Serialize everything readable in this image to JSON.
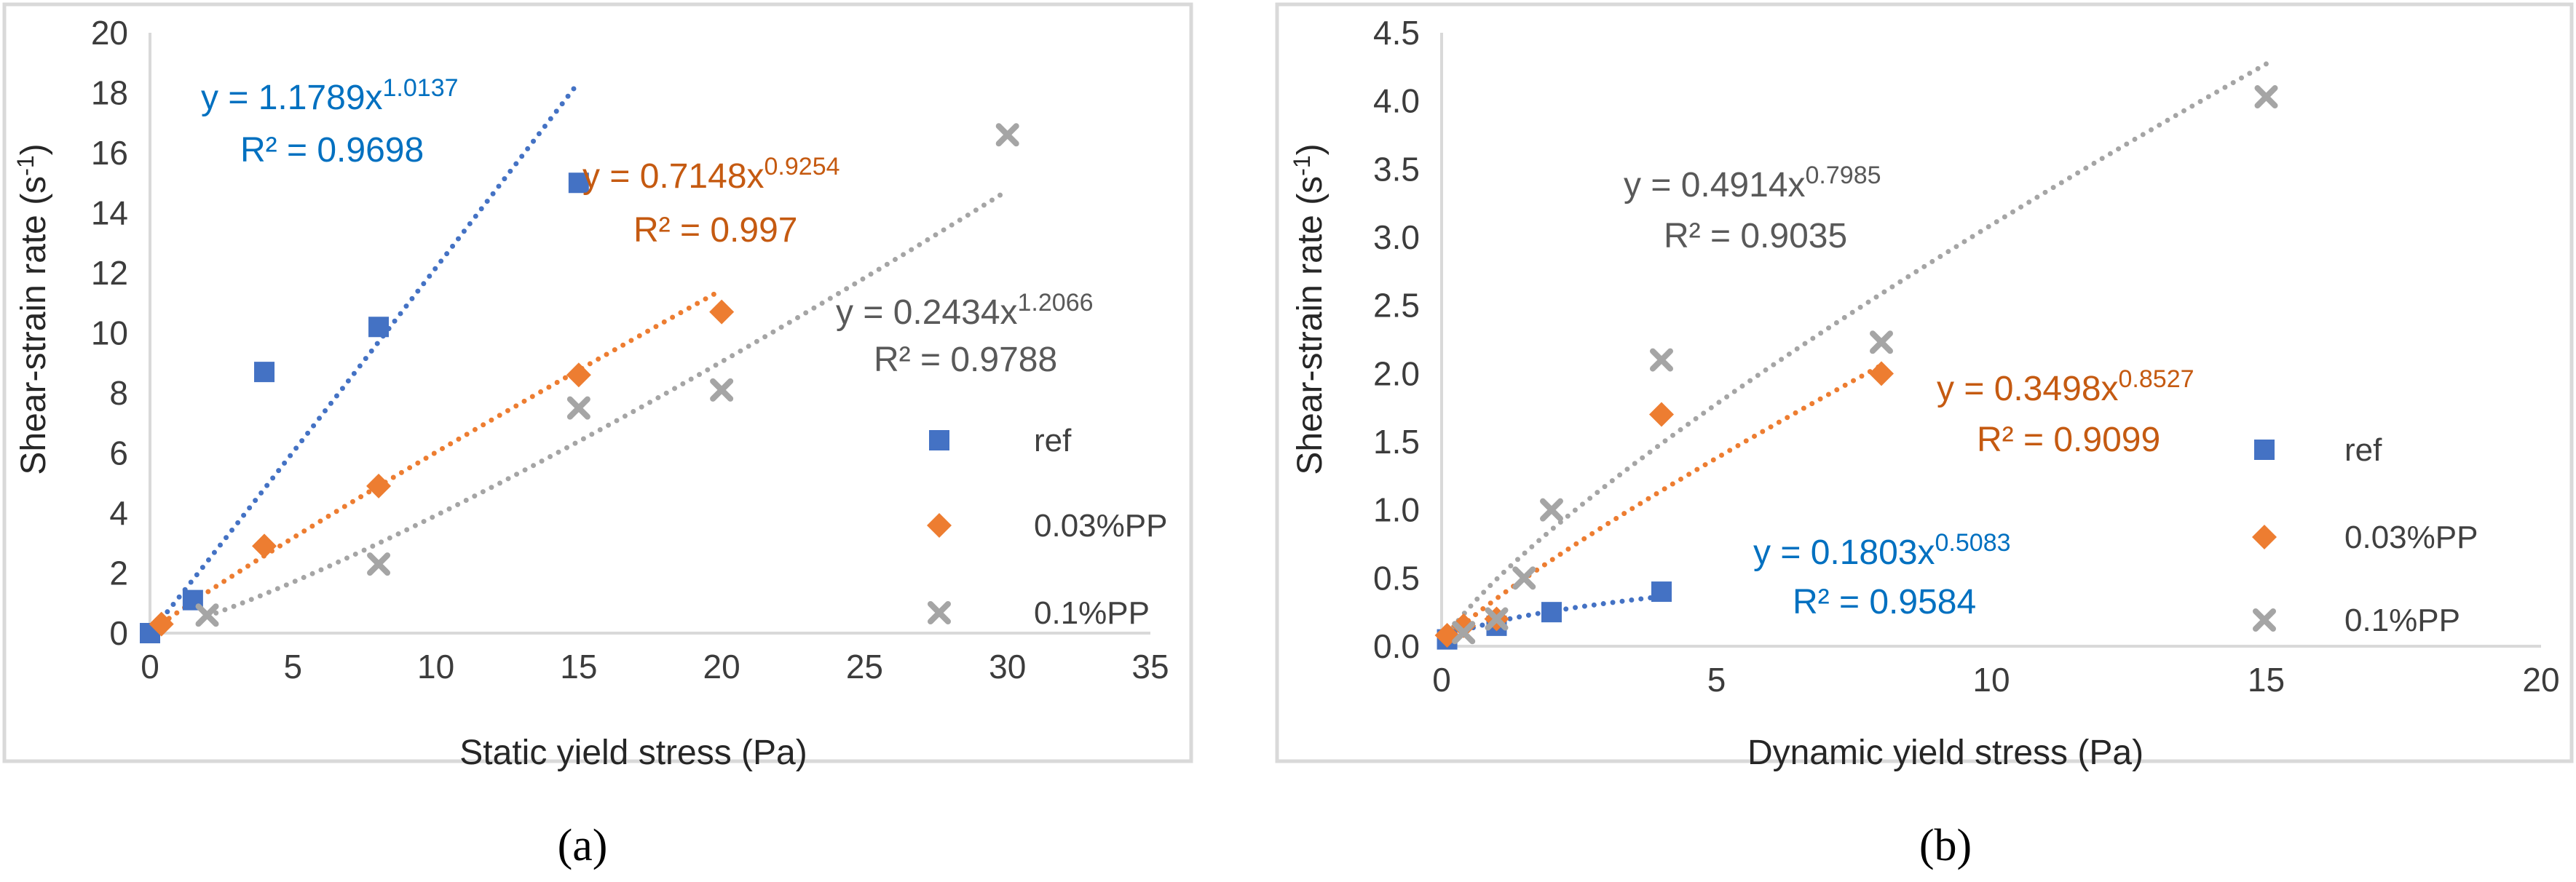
{
  "chart_data": [
    {
      "id": "a",
      "type": "scatter",
      "panel_label": "(a)",
      "xlabel": "Static yield stress (Pa)",
      "ylabel": "Shear-strain rate (s",
      "ylabel_sup": "-1",
      "ylabel_end": ")",
      "xlim": [
        0,
        35
      ],
      "ylim": [
        0,
        20
      ],
      "xticks": [
        0,
        5,
        10,
        15,
        20,
        25,
        30,
        35
      ],
      "yticks": [
        0,
        2,
        4,
        6,
        8,
        10,
        12,
        14,
        16,
        18,
        20
      ],
      "legend_position": "right",
      "series": [
        {
          "name": "ref",
          "marker": "square",
          "color": "#4472C4",
          "points": [
            [
              0,
              0
            ],
            [
              1.5,
              1.1
            ],
            [
              4,
              8.7
            ],
            [
              8,
              10.2
            ],
            [
              15,
              15.0
            ]
          ],
          "trendline": {
            "a": 1.1789,
            "b": 1.0137,
            "x_range": [
              0.4,
              15.0
            ],
            "color": "#4472C4"
          },
          "equation": {
            "lead": "y = 1.1789x",
            "exponent": "1.0137",
            "r2": "R² = 0.9698",
            "color": "#0070C0",
            "position": "upper-left"
          }
        },
        {
          "name": "0.03%PP",
          "marker": "diamond",
          "color": "#ED7D31",
          "points": [
            [
              0.4,
              0.3
            ],
            [
              4,
              2.9
            ],
            [
              8,
              4.9
            ],
            [
              15,
              8.6
            ],
            [
              20,
              10.7
            ]
          ],
          "trendline": {
            "a": 0.7148,
            "b": 0.9254,
            "x_range": [
              0.4,
              20
            ],
            "color": "#ED7D31"
          },
          "equation": {
            "lead": "y = 0.7148x",
            "exponent": "0.9254",
            "r2": "R² = 0.997",
            "color": "#C55A11",
            "position": "upper-middle"
          }
        },
        {
          "name": "0.1%PP",
          "marker": "x",
          "color": "#A5A5A5",
          "points": [
            [
              2,
              0.6
            ],
            [
              8,
              2.3
            ],
            [
              15,
              7.5
            ],
            [
              20,
              8.1
            ],
            [
              30,
              16.6
            ]
          ],
          "trendline": {
            "a": 0.2434,
            "b": 1.2066,
            "x_range": [
              2,
              30
            ],
            "color": "#A5A5A5"
          },
          "equation": {
            "lead": "y = 0.2434x",
            "exponent": "1.2066",
            "r2": "R² = 0.9788",
            "color": "#595959",
            "position": "middle-right"
          }
        }
      ]
    },
    {
      "id": "b",
      "type": "scatter",
      "panel_label": "(b)",
      "xlabel": "Dynamic yield stress (Pa)",
      "ylabel": "Shear-strain rate (s",
      "ylabel_sup": "-1",
      "ylabel_end": ")",
      "xlim": [
        0,
        20
      ],
      "ylim": [
        0,
        4.5
      ],
      "xticks": [
        0,
        5,
        10,
        15,
        20
      ],
      "yticks": [
        "0.0",
        "0.5",
        "1.0",
        "1.5",
        "2.0",
        "2.5",
        "3.0",
        "3.5",
        "4.0",
        "4.5"
      ],
      "legend_position": "right",
      "series": [
        {
          "name": "ref",
          "marker": "square",
          "color": "#4472C4",
          "points": [
            [
              0.1,
              0.05
            ],
            [
              1,
              0.15
            ],
            [
              2,
              0.25
            ],
            [
              4,
              0.4
            ]
          ],
          "trendline": {
            "a": 0.1803,
            "b": 0.5083,
            "x_range": [
              0.1,
              4
            ],
            "color": "#4472C4"
          },
          "equation": {
            "lead": "y = 0.1803x",
            "exponent": "0.5083",
            "r2": "R² = 0.9584",
            "color": "#0070C0",
            "position": "lower-middle"
          }
        },
        {
          "name": "0.03%PP",
          "marker": "diamond",
          "color": "#ED7D31",
          "points": [
            [
              0.1,
              0.08
            ],
            [
              0.4,
              0.15
            ],
            [
              1,
              0.2
            ],
            [
              4,
              1.7
            ],
            [
              8,
              2.0
            ]
          ],
          "trendline": {
            "a": 0.3498,
            "b": 0.8527,
            "x_range": [
              0.1,
              8
            ],
            "color": "#ED7D31"
          },
          "equation": {
            "lead": "y = 0.3498x",
            "exponent": "0.8527",
            "r2": "R² = 0.9099",
            "color": "#C55A11",
            "position": "middle-right"
          }
        },
        {
          "name": "0.1%PP",
          "marker": "x",
          "color": "#A5A5A5",
          "points": [
            [
              0.4,
              0.1
            ],
            [
              1,
              0.2
            ],
            [
              1.5,
              0.5
            ],
            [
              2,
              1.0
            ],
            [
              4,
              2.1
            ],
            [
              8,
              2.23
            ],
            [
              15,
              4.03
            ]
          ],
          "trendline": {
            "a": 0.4914,
            "b": 0.7985,
            "x_range": [
              0.1,
              15
            ],
            "color": "#A5A5A5"
          },
          "equation": {
            "lead": "y = 0.4914x",
            "exponent": "0.7985",
            "r2": "R² = 0.9035",
            "color": "#595959",
            "position": "upper-middle"
          }
        }
      ]
    }
  ]
}
